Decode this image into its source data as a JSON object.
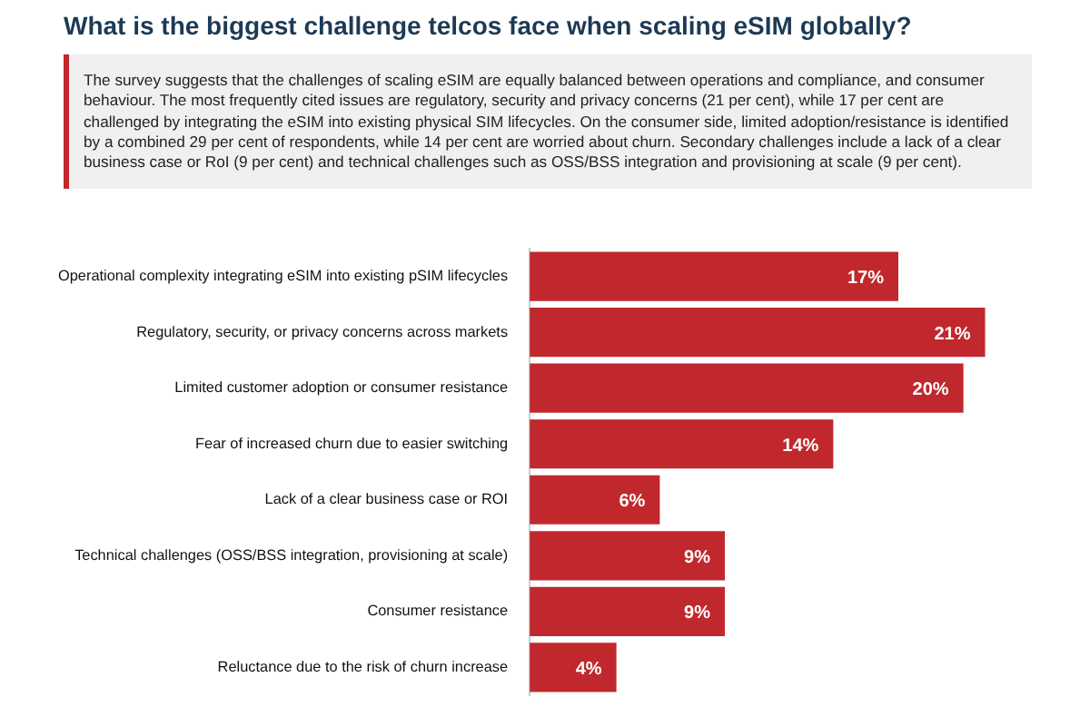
{
  "chart_data": {
    "type": "bar",
    "orientation": "horizontal",
    "title": "What is the biggest challenge telcos face when scaling eSIM globally?",
    "annotations": [
      "The survey suggests that the challenges of scaling eSIM are equally balanced between operations and compliance, and consumer behaviour. The most frequently cited issues are regulatory, security and privacy concerns (21 per cent), while 17 per cent are challenged by integrating the eSIM into existing physical SIM lifecycles. On the consumer side, limited adoption/resistance is identified by a combined 29 per cent of respondents, while 14 per cent are worried about churn. Secondary challenges include a lack of a clear business case or RoI (9 per cent) and technical challenges such as OSS/BSS integration and provisioning at scale (9 per cent)."
    ],
    "categories": [
      "Operational complexity integrating eSIM into existing pSIM lifecycles",
      "Regulatory, security, or privacy concerns across markets",
      "Limited customer adoption or consumer resistance",
      "Fear of increased churn due to easier switching",
      "Lack of a clear business case or ROI",
      "Technical challenges (OSS/BSS integration, provisioning at scale)",
      "Consumer resistance",
      "Reluctance due to the risk of churn increase"
    ],
    "values": [
      17,
      21,
      20,
      14,
      6,
      9,
      9,
      4
    ],
    "value_labels": [
      "17%",
      "21%",
      "20%",
      "14%",
      "6%",
      "9%",
      "9%",
      "4%"
    ],
    "color": "#c0282d",
    "tick_labels": "y"
  }
}
